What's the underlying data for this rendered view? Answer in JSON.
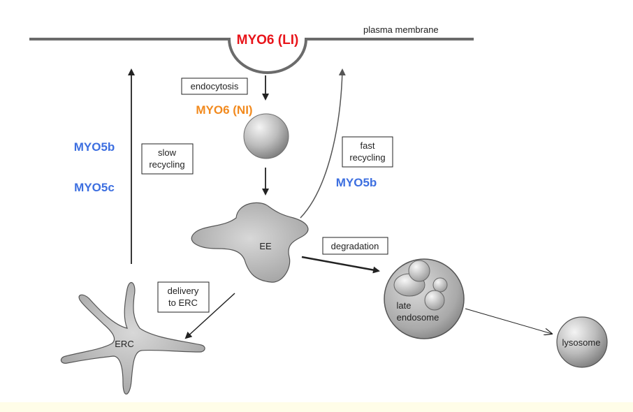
{
  "labels": {
    "plasma_membrane": "plasma membrane",
    "myo6_li": "MYO6 (LI)",
    "endocytosis": "endocytosis",
    "myo6_ni": "MYO6 (NI)",
    "myo5b_left": "MYO5b",
    "myo5c": "MYO5c",
    "slow_recycling_line1": "slow",
    "slow_recycling_line2": "recycling",
    "fast_recycling_line1": "fast",
    "fast_recycling_line2": "recycling",
    "myo5b_right": "MYO5b",
    "ee": "EE",
    "degradation": "degradation",
    "delivery_line1": "delivery",
    "delivery_line2": "to ERC",
    "erc": "ERC",
    "late_endosome_line1": "late",
    "late_endosome_line2": "endosome",
    "lysosome": "lysosome"
  },
  "colors": {
    "myo6_li": "#e8141a",
    "myo6_ni": "#f28a1e",
    "myo5": "#3d6fe0",
    "membrane": "#6b6b6b",
    "line": "#222222",
    "footer": "#fffde8"
  }
}
